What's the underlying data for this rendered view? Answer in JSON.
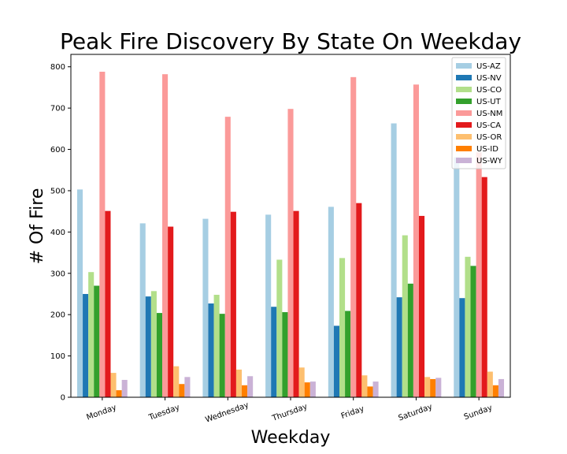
{
  "chart_data": {
    "type": "bar",
    "title": "Peak Fire Discovery By State On Weekday",
    "xlabel": "Weekday",
    "ylabel": "# Of Fire",
    "ylim": [
      0,
      830
    ],
    "yticks": [
      0,
      100,
      200,
      300,
      400,
      500,
      600,
      700,
      800
    ],
    "categories": [
      "Monday",
      "Tuesday",
      "Wednesday",
      "Thursday",
      "Friday",
      "Saturday",
      "Sunday"
    ],
    "grid": false,
    "legend_position": "top-right",
    "series": [
      {
        "name": "US-AZ",
        "color": "#a6cee3",
        "values": [
          503,
          421,
          432,
          442,
          461,
          663,
          581
        ]
      },
      {
        "name": "US-NV",
        "color": "#1f78b4",
        "values": [
          250,
          244,
          227,
          219,
          173,
          242,
          240
        ]
      },
      {
        "name": "US-CO",
        "color": "#b2df8a",
        "values": [
          303,
          257,
          248,
          333,
          337,
          392,
          340
        ]
      },
      {
        "name": "US-UT",
        "color": "#33a02c",
        "values": [
          270,
          204,
          202,
          206,
          209,
          275,
          318
        ]
      },
      {
        "name": "US-NM",
        "color": "#fb9a99",
        "values": [
          788,
          782,
          679,
          698,
          775,
          757,
          593
        ]
      },
      {
        "name": "US-CA",
        "color": "#e31a1c",
        "values": [
          451,
          413,
          449,
          451,
          470,
          439,
          533
        ]
      },
      {
        "name": "US-OR",
        "color": "#fdbf6f",
        "values": [
          59,
          75,
          67,
          72,
          53,
          49,
          62
        ]
      },
      {
        "name": "US-ID",
        "color": "#ff7f00",
        "values": [
          17,
          32,
          29,
          36,
          26,
          44,
          29
        ]
      },
      {
        "name": "US-WY",
        "color": "#cab2d6",
        "values": [
          42,
          49,
          51,
          38,
          38,
          47,
          44
        ]
      }
    ]
  }
}
